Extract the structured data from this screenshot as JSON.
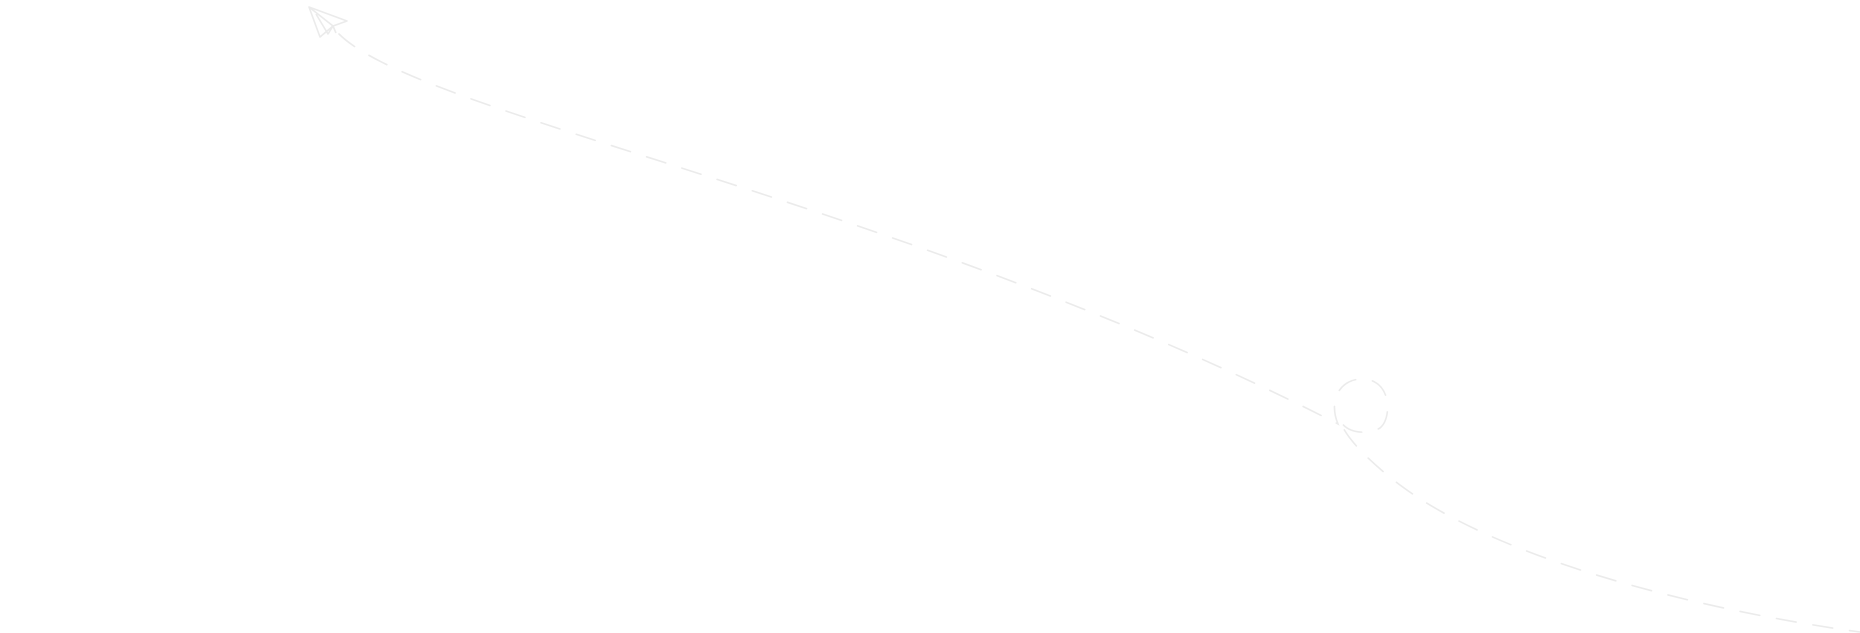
{
  "illustration": {
    "icon": "paper-plane-icon",
    "path_style": "dashed",
    "stroke_color": "#ebebeb",
    "background": "#ffffff"
  }
}
